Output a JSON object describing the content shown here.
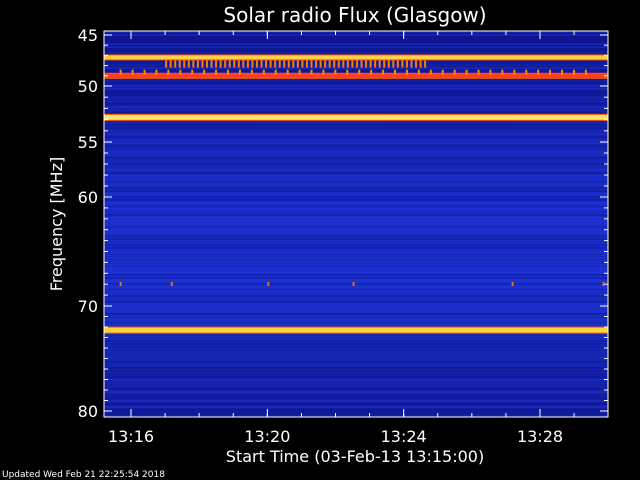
{
  "chart_data": {
    "type": "heatmap",
    "title": "Solar radio Flux (Glasgow)",
    "xlabel": "Start Time (03-Feb-13 13:15:00)",
    "ylabel": "Frequency [MHz]",
    "xlim": [
      "13:15:00",
      "13:30:00"
    ],
    "ylim": [
      45,
      80
    ],
    "y_inverted": true,
    "x_ticks": [
      "13:16",
      "13:20",
      "13:24",
      "13:28"
    ],
    "y_ticks": [
      45,
      50,
      55,
      60,
      70,
      80
    ],
    "grid": false,
    "colormap": {
      "low": "#0a0a78",
      "mid": "#1f34d6",
      "high": "#ffd200",
      "peak": "#ff3c00"
    },
    "bands": [
      {
        "frequency_mhz": 47.2,
        "intensity": "strong",
        "color": "#ffcf40"
      },
      {
        "frequency_mhz": 49.0,
        "intensity": "strong",
        "color": "#ff3c1e"
      },
      {
        "frequency_mhz": 52.8,
        "intensity": "very strong",
        "color": "#ffe27a"
      },
      {
        "frequency_mhz": 72.3,
        "intensity": "very strong",
        "color": "#ffd23c"
      }
    ],
    "bursts": {
      "frequency_range_mhz": [
        47.5,
        48.2
      ],
      "time_range": [
        "13:17:00",
        "13:24:40"
      ],
      "color": "#ff7a00"
    }
  },
  "footer": {
    "updated": "Updated Wed Feb 21 22:25:54 2018"
  }
}
